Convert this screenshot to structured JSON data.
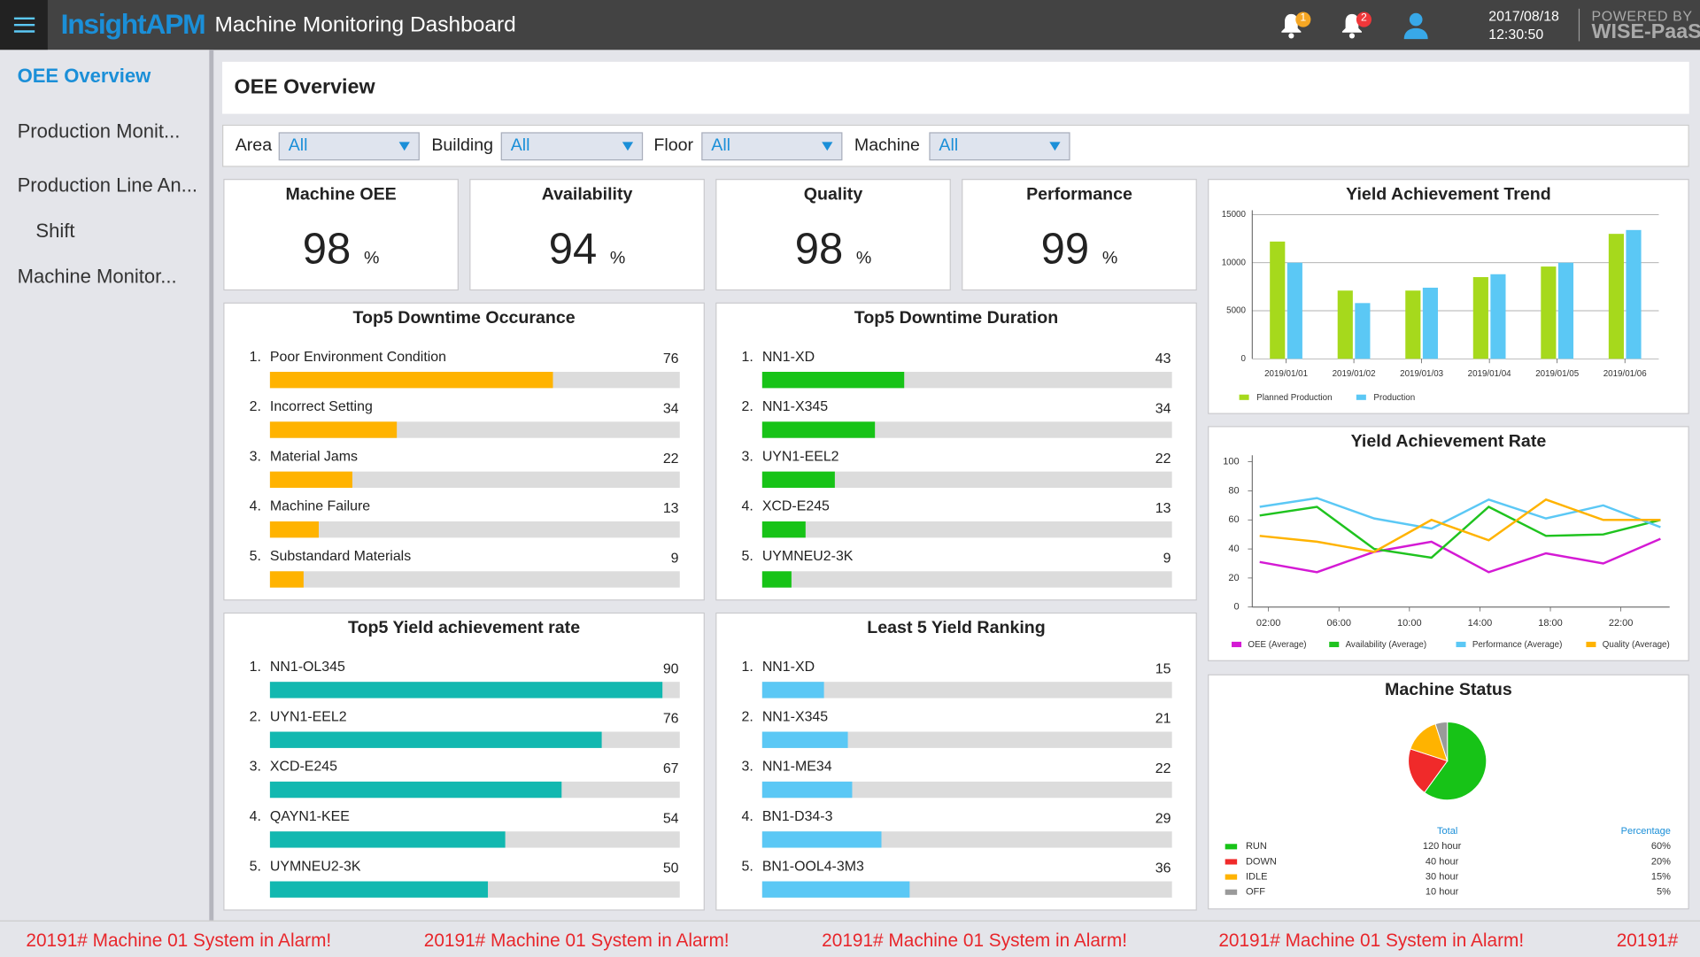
{
  "header": {
    "brand": "InsightAPM",
    "title": "Machine Monitoring Dashboard",
    "badges": [
      "1",
      "2"
    ],
    "date": "2017/08/18",
    "time": "12:30:50",
    "powered": "POWERED BY",
    "platform": "WISE-PaaS"
  },
  "sidebar": {
    "active": 0,
    "items": [
      {
        "label": "OEE Overview",
        "level": 1
      },
      {
        "label": "Production Monit...",
        "level": 1
      },
      {
        "label": "Production Line An...",
        "level": 1
      },
      {
        "label": "Shift",
        "level": 2
      },
      {
        "label": "Machine Monitor...",
        "level": 1
      }
    ]
  },
  "page_title": "OEE Overview",
  "filters": [
    {
      "label": "Area",
      "value": "All"
    },
    {
      "label": "Building",
      "value": "All"
    },
    {
      "label": "Floor",
      "value": "All"
    },
    {
      "label": "Machine",
      "value": "All"
    }
  ],
  "kpis": [
    {
      "title": "Machine OEE",
      "value": 98,
      "unit": "%"
    },
    {
      "title": "Availability",
      "value": 94,
      "unit": "%"
    },
    {
      "title": "Quality",
      "value": 98,
      "unit": "%"
    },
    {
      "title": "Performance",
      "value": 99,
      "unit": "%"
    }
  ],
  "chart_data": [
    {
      "type": "hbar",
      "title": "Top5 Downtime Occurance",
      "ranks": [
        "1.",
        "2.",
        "3.",
        "4.",
        "5."
      ],
      "categories": [
        "Poor Environment Condition",
        "Incorrect Setting",
        "Material Jams",
        "Machine Failure",
        "Substandard Materials"
      ],
      "values": [
        76,
        34,
        22,
        13,
        9
      ],
      "color": "#ffb300",
      "xlim": [
        0,
        110
      ]
    },
    {
      "type": "hbar",
      "title": "Top5 Downtime Duration",
      "ranks": [
        "1.",
        "2.",
        "3.",
        "4.",
        "5."
      ],
      "categories": [
        "NN1-XD",
        "NN1-X345",
        "UYN1-EEL2",
        "XCD-E245",
        "UYMNEU2-3K"
      ],
      "values": [
        43,
        34,
        22,
        13,
        9
      ],
      "color": "#17c317",
      "xlim": [
        0,
        124
      ]
    },
    {
      "type": "hbar",
      "title": "Top5 Yield achievement rate",
      "ranks": [
        "1.",
        "2.",
        "3.",
        "4.",
        "5."
      ],
      "categories": [
        "NN1-OL345",
        "UYN1-EEL2",
        "XCD-E245",
        "QAYN1-KEE",
        "UYMNEU2-3K"
      ],
      "values": [
        90,
        76,
        67,
        54,
        50
      ],
      "color": "#12b8b0",
      "xlim": [
        0,
        94
      ]
    },
    {
      "type": "hbar",
      "title": "Least 5 Yield Ranking",
      "ranks": [
        "1.",
        "2.",
        "3.",
        "4.",
        "5."
      ],
      "categories": [
        "NN1-XD",
        "NN1-X345",
        "NN1-ME34",
        "BN1-D34-3",
        "BN1-OOL4-3M3"
      ],
      "values": [
        15,
        21,
        22,
        29,
        36
      ],
      "color": "#5bc8f5",
      "xlim": [
        0,
        100
      ]
    },
    {
      "type": "bar",
      "title": "Yield Achievement Trend",
      "categories": [
        "2019/01/01",
        "2019/01/02",
        "2019/01/03",
        "2019/01/04",
        "2019/01/05",
        "2019/01/06"
      ],
      "series": [
        {
          "name": "Planned Production",
          "color": "#a6d91c",
          "values": [
            12200,
            7100,
            7100,
            8500,
            9600,
            13000
          ]
        },
        {
          "name": "Production",
          "color": "#5bc8f5",
          "values": [
            10000,
            5800,
            7400,
            8800,
            10000,
            13400
          ]
        }
      ],
      "ylim": [
        0,
        15000
      ],
      "yticks": [
        0,
        5000,
        10000,
        15000
      ],
      "grid": true
    },
    {
      "type": "line",
      "title": "Yield Achievement Rate",
      "x": [
        1.5,
        4.75,
        8,
        11.25,
        14.5,
        17.75,
        21,
        24.25
      ],
      "series": [
        {
          "name": "OEE (Average)",
          "color": "#d41ad4",
          "values": [
            31,
            24,
            38,
            45,
            24,
            37,
            30,
            47
          ]
        },
        {
          "name": "Availability (Average)",
          "color": "#1fc31f",
          "values": [
            63,
            69,
            40,
            34,
            69,
            49,
            50,
            60
          ]
        },
        {
          "name": "Performance (Average)",
          "color": "#5bc8f5",
          "values": [
            69,
            75,
            61,
            54,
            74,
            61,
            70,
            55
          ]
        },
        {
          "name": "Quality (Average)",
          "color": "#ffb300",
          "values": [
            49,
            45,
            38,
            60,
            46,
            74,
            60,
            60
          ]
        }
      ],
      "xlim": [
        1,
        25
      ],
      "xticks": [
        {
          "value": 2,
          "label": "02:00"
        },
        {
          "value": 6,
          "label": "06:00"
        },
        {
          "value": 10,
          "label": "10:00"
        },
        {
          "value": 14,
          "label": "14:00"
        },
        {
          "value": 18,
          "label": "18:00"
        },
        {
          "value": 22,
          "label": "22:00"
        }
      ],
      "ylim": [
        0,
        100
      ],
      "yticks": [
        0,
        20,
        40,
        60,
        80,
        100
      ],
      "grid": false
    },
    {
      "type": "pie",
      "title": "Machine Status",
      "categories": [
        "RUN",
        "DOWN",
        "IDLE",
        "OFF"
      ],
      "values": [
        60,
        20,
        15,
        5
      ],
      "value_labels": [
        "60%",
        "20%",
        "15%",
        "5%"
      ],
      "colors": [
        "#17c317",
        "#f02a2a",
        "#ffb300",
        "#9a9a9a"
      ],
      "totals": [
        "120 hour",
        "40 hour",
        "30 hour",
        "10 hour"
      ],
      "columns": [
        "Total",
        "Percentage"
      ]
    }
  ],
  "alarms": [
    "20191# Machine 01 System in Alarm!",
    "20191# Machine 01 System in Alarm!",
    "20191# Machine 01 System in Alarm!",
    "20191# Machine 01 System in Alarm!",
    "20191#"
  ]
}
